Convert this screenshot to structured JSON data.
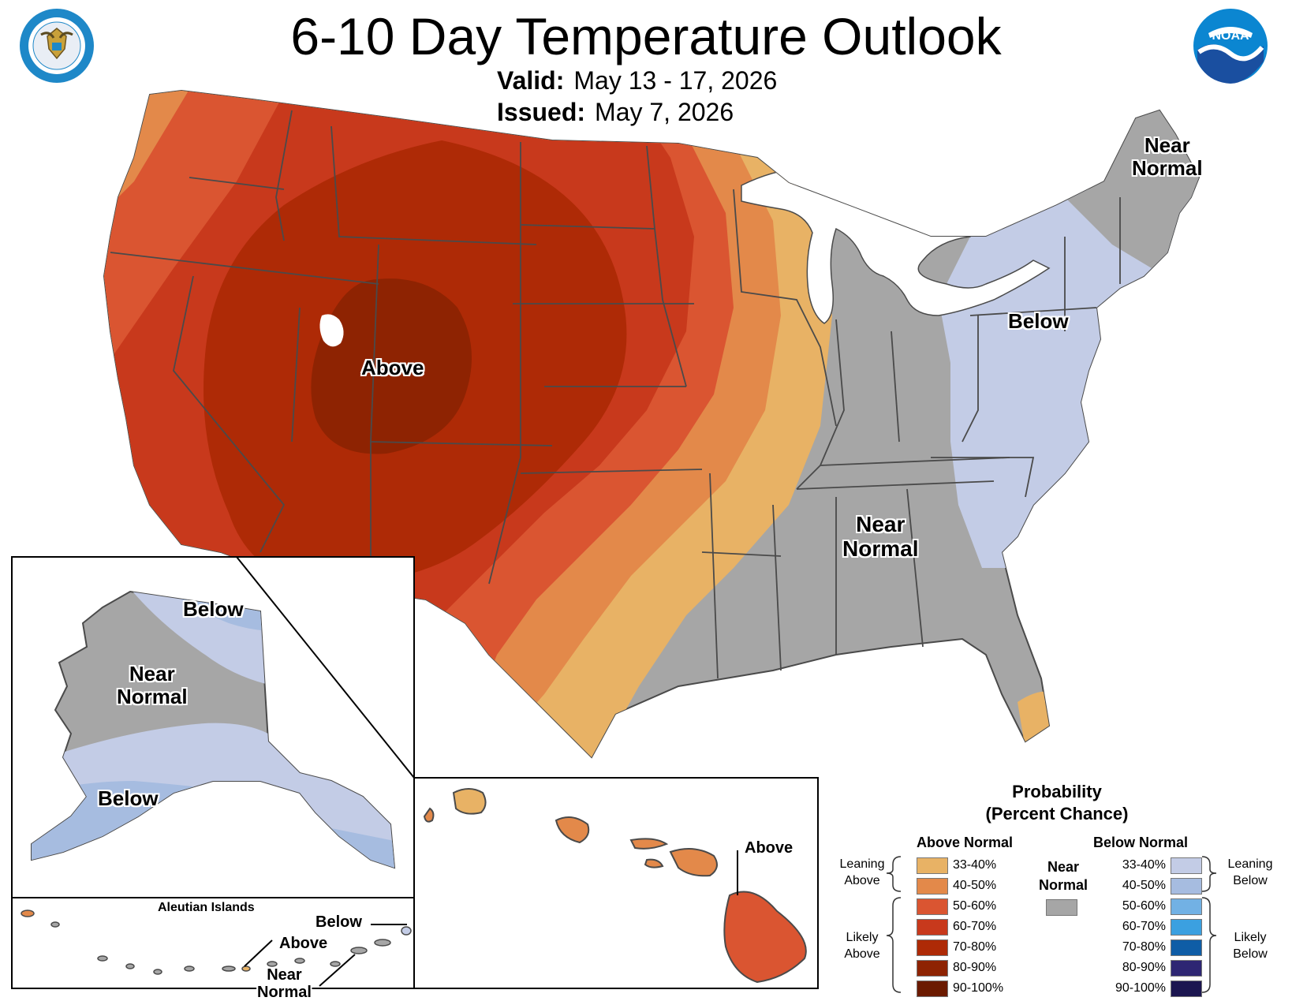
{
  "title": "6-10 Day Temperature Outlook",
  "valid_label": "Valid:",
  "valid_value": "May 13 - 17, 2026",
  "issued_label": "Issued:",
  "issued_value": "May 7, 2026",
  "logos": {
    "left": "department-of-commerce-seal",
    "right": "noaa-logo"
  },
  "map_labels": {
    "conus_above": "Above",
    "conus_below": "Below",
    "conus_near_normal_ne": [
      "Near",
      "Normal"
    ],
    "conus_near_normal_se": [
      "Near",
      "Normal"
    ],
    "alaska_below_n": "Below",
    "alaska_near_normal": [
      "Near",
      "Normal"
    ],
    "alaska_below_s": "Below",
    "aleutian_title": "Aleutian Islands",
    "aleutian_below": "Below",
    "aleutian_above": "Above",
    "aleutian_near_normal": [
      "Near",
      "Normal"
    ],
    "hawaii_above": "Above"
  },
  "legend": {
    "title_line1": "Probability",
    "title_line2": "(Percent Chance)",
    "above_header": "Above Normal",
    "below_header": "Below Normal",
    "near_header": [
      "Near",
      "Normal"
    ],
    "leaning_above": [
      "Leaning",
      "Above"
    ],
    "likely_above": [
      "Likely",
      "Above"
    ],
    "leaning_below": [
      "Leaning",
      "Below"
    ],
    "likely_below": [
      "Likely",
      "Below"
    ],
    "above_bins": [
      {
        "range": "33-40%",
        "color": "#e8b265"
      },
      {
        "range": "40-50%",
        "color": "#e3894a"
      },
      {
        "range": "50-60%",
        "color": "#da5531"
      },
      {
        "range": "60-70%",
        "color": "#c8391c"
      },
      {
        "range": "70-80%",
        "color": "#ae2a06"
      },
      {
        "range": "80-90%",
        "color": "#8e2302"
      },
      {
        "range": "90-100%",
        "color": "#6b1a00"
      }
    ],
    "below_bins": [
      {
        "range": "33-40%",
        "color": "#c3cce6"
      },
      {
        "range": "40-50%",
        "color": "#a6bce0"
      },
      {
        "range": "50-60%",
        "color": "#72b1e4"
      },
      {
        "range": "60-70%",
        "color": "#3ba0e0"
      },
      {
        "range": "70-80%",
        "color": "#0f5da6"
      },
      {
        "range": "80-90%",
        "color": "#2e2673"
      },
      {
        "range": "90-100%",
        "color": "#1c1650"
      }
    ],
    "near_color": "#a6a6a6"
  },
  "colors": {
    "near_normal": "#a6a6a6",
    "state_lines": "#4a4a4a",
    "water": "#ffffff"
  }
}
